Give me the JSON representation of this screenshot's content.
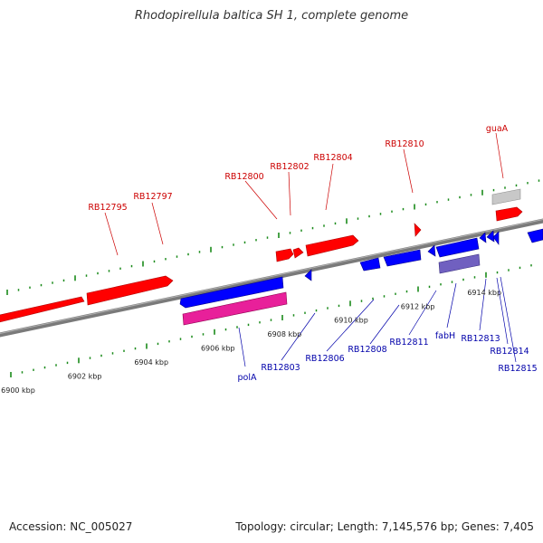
{
  "title": "Rhodopirellula baltica SH 1, complete genome",
  "footer": {
    "accession": "Accession: NC_005027",
    "summary": "Topology: circular; Length: 7,145,576 bp; Genes: 7,405"
  },
  "colors": {
    "forward_gene": "#ff0000",
    "reverse_gene": "#0000ff",
    "rna_gene": "#e0208c",
    "other_gene": "#7060c0",
    "pseudo_gene": "#c8c8c8",
    "backbone": "#808080",
    "dots": "#1a8a1a",
    "forward_label": "#cc0000",
    "reverse_label": "#0000aa"
  },
  "scale": {
    "unit": "kbp",
    "ticks": [
      {
        "kbp": 6900,
        "label": "6900 kbp"
      },
      {
        "kbp": 6902,
        "label": "6902 kbp"
      },
      {
        "kbp": 6904,
        "label": "6904 kbp"
      },
      {
        "kbp": 6906,
        "label": "6906 kbp"
      },
      {
        "kbp": 6908,
        "label": "6908 kbp"
      },
      {
        "kbp": 6910,
        "label": "6910 kbp"
      },
      {
        "kbp": 6912,
        "label": "6912 kbp"
      },
      {
        "kbp": 6914,
        "label": "6914 kbp"
      }
    ]
  },
  "forward_labels": [
    "RB12795",
    "RB12797",
    "RB12800",
    "RB12802",
    "RB12804",
    "RB12810",
    "guaA"
  ],
  "reverse_labels": [
    "polA",
    "RB12803",
    "RB12806",
    "RB12808",
    "RB12811",
    "fabH",
    "RB12813",
    "RB12814",
    "RB12815"
  ]
}
